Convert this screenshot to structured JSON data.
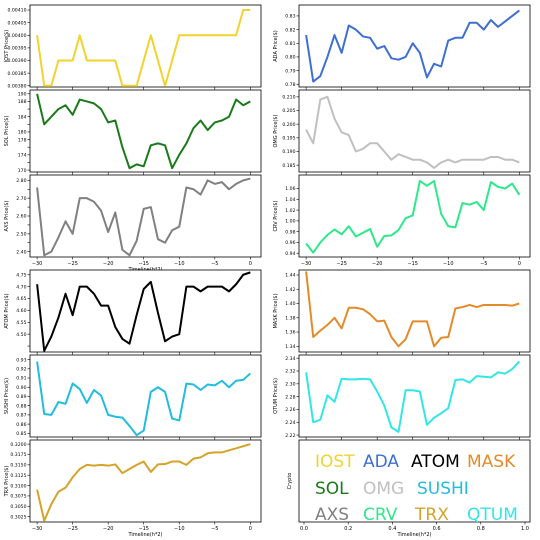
{
  "xlabel": "Timeline(h*2)",
  "x": [
    -30,
    -29,
    -28,
    -27,
    -26,
    -25,
    -24,
    -23,
    -22,
    -21,
    -20,
    -19,
    -18,
    -17,
    -16,
    -15,
    -14,
    -13,
    -12,
    -11,
    -10,
    -9,
    -8,
    -7,
    -6,
    -5,
    -4,
    -3,
    -2,
    -1,
    0
  ],
  "chart_data": [
    {
      "type": "line",
      "name": "IOST",
      "ylabel": "IOST Price($)",
      "color": "#f2d22e",
      "xticks": [
        -30,
        -25,
        -20,
        -15,
        -10,
        -5,
        0
      ],
      "yticks": [
        0.0038,
        0.00385,
        0.0039,
        0.00395,
        0.004,
        0.00405,
        0.0041
      ],
      "ytick_labels": [
        "0.00380",
        "0.00385",
        "0.00390",
        "0.00395",
        "0.00400",
        "0.00405",
        "0.00410"
      ],
      "ylim": [
        0.003795,
        0.00412
      ],
      "values": [
        0.004,
        0.0038,
        0.0038,
        0.0039,
        0.0039,
        0.0039,
        0.004,
        0.0039,
        0.0039,
        0.0039,
        0.0039,
        0.0039,
        0.0038,
        0.0038,
        0.0038,
        0.0039,
        0.004,
        0.0039,
        0.0038,
        0.0039,
        0.004,
        0.004,
        0.004,
        0.004,
        0.004,
        0.004,
        0.004,
        0.004,
        0.004,
        0.0041,
        0.0041
      ]
    },
    {
      "type": "line",
      "name": "ADA",
      "ylabel": "ADA Price($)",
      "color": "#3f6fd1",
      "xticks": [
        -30,
        -25,
        -20,
        -15,
        -10,
        -5,
        0
      ],
      "yticks": [
        0.78,
        0.79,
        0.8,
        0.81,
        0.82,
        0.83
      ],
      "ytick_labels": [
        "0.78",
        "0.79",
        "0.80",
        "0.81",
        "0.82",
        "0.83"
      ],
      "ylim": [
        0.778,
        0.838
      ],
      "values": [
        0.816,
        0.782,
        0.786,
        0.8,
        0.816,
        0.803,
        0.823,
        0.82,
        0.815,
        0.814,
        0.806,
        0.808,
        0.799,
        0.798,
        0.8,
        0.81,
        0.803,
        0.785,
        0.795,
        0.793,
        0.812,
        0.814,
        0.814,
        0.825,
        0.825,
        0.82,
        0.827,
        0.822,
        0.826,
        0.83,
        0.834
      ]
    },
    {
      "type": "line",
      "name": "SOL",
      "ylabel": "SOL Price($)",
      "color": "#1a7a1a",
      "xticks": [
        -30,
        -25,
        -20,
        -15,
        -10,
        -5,
        0
      ],
      "yticks": [
        170,
        172,
        174,
        176,
        178,
        180,
        182,
        184,
        186,
        188,
        190
      ],
      "ytick_labels": [
        "170",
        "",
        "174",
        "",
        "178",
        "180",
        "",
        "184",
        "",
        "188",
        "190"
      ],
      "ylim": [
        169.5,
        191
      ],
      "values": [
        190,
        182,
        184,
        186,
        187,
        184.5,
        188.5,
        188,
        187.5,
        186,
        182.5,
        183,
        176,
        170.5,
        171.5,
        171,
        176.5,
        177,
        176.5,
        170.5,
        174,
        177,
        181,
        183,
        180.5,
        182.5,
        183,
        184,
        188.5,
        187,
        188
      ]
    },
    {
      "type": "line",
      "name": "OMG",
      "ylabel": "OMG Price($)",
      "color": "#c0c0c0",
      "xticks": [
        -30,
        -25,
        -20,
        -15,
        -10,
        -5,
        0
      ],
      "yticks": [
        0.185,
        0.19,
        0.195,
        0.2,
        0.205,
        0.21
      ],
      "ytick_labels": [
        "0.185",
        "0.190",
        "0.195",
        "0.200",
        "0.205",
        "0.210"
      ],
      "ylim": [
        0.1825,
        0.2125
      ],
      "values": [
        0.198,
        0.193,
        0.209,
        0.21,
        0.202,
        0.197,
        0.196,
        0.19,
        0.191,
        0.193,
        0.193,
        0.19,
        0.187,
        0.189,
        0.188,
        0.187,
        0.187,
        0.186,
        0.184,
        0.186,
        0.187,
        0.186,
        0.187,
        0.187,
        0.187,
        0.187,
        0.188,
        0.188,
        0.187,
        0.187,
        0.186
      ]
    },
    {
      "type": "line",
      "name": "AXS",
      "ylabel": "AXS Price($)",
      "color": "#808080",
      "xticks": [
        -30,
        -25,
        -20,
        -15,
        -10,
        -5,
        0
      ],
      "yticks": [
        2.4,
        2.45,
        2.5,
        2.55,
        2.6,
        2.65,
        2.7,
        2.75,
        2.8
      ],
      "ytick_labels": [
        "2.40",
        "",
        "2.50",
        "",
        "2.60",
        "",
        "2.70",
        "",
        "2.80"
      ],
      "ylim": [
        2.37,
        2.83
      ],
      "values": [
        2.76,
        2.38,
        2.4,
        2.48,
        2.57,
        2.5,
        2.7,
        2.7,
        2.68,
        2.63,
        2.51,
        2.62,
        2.41,
        2.38,
        2.46,
        2.64,
        2.65,
        2.47,
        2.45,
        2.52,
        2.54,
        2.76,
        2.75,
        2.72,
        2.8,
        2.78,
        2.79,
        2.75,
        2.78,
        2.8,
        2.81
      ]
    },
    {
      "type": "line",
      "name": "CRV",
      "ylabel": "CRV Price($)",
      "color": "#2ee88a",
      "xticks": [
        -30,
        -25,
        -20,
        -15,
        -10,
        -5,
        0
      ],
      "yticks": [
        0.94,
        0.96,
        0.98,
        1.0,
        1.02,
        1.04,
        1.06
      ],
      "ytick_labels": [
        "0.94",
        "0.96",
        "0.98",
        "1.00",
        "1.02",
        "1.04",
        "1.06"
      ],
      "ylim": [
        0.933,
        1.085
      ],
      "values": [
        0.958,
        0.941,
        0.96,
        0.974,
        0.984,
        0.975,
        0.99,
        0.971,
        0.978,
        0.985,
        0.952,
        0.972,
        0.973,
        0.983,
        1.005,
        1.01,
        1.074,
        1.065,
        1.074,
        1.013,
        0.99,
        0.988,
        1.033,
        1.03,
        1.035,
        1.02,
        1.072,
        1.063,
        1.06,
        1.069,
        1.048
      ]
    },
    {
      "type": "line",
      "name": "ATOM",
      "ylabel": "ATOM Price($)",
      "color": "#000000",
      "xticks": [
        -30,
        -25,
        -20,
        -15,
        -10,
        -5,
        0
      ],
      "yticks": [
        4.45,
        4.5,
        4.55,
        4.6,
        4.65,
        4.7,
        4.75
      ],
      "ytick_labels": [
        "",
        "4.50",
        "4.55",
        "4.60",
        "4.65",
        "4.70",
        "4.75"
      ],
      "ylim": [
        4.425,
        4.77
      ],
      "values": [
        4.71,
        4.43,
        4.49,
        4.57,
        4.67,
        4.58,
        4.7,
        4.7,
        4.67,
        4.62,
        4.62,
        4.53,
        4.48,
        4.46,
        4.58,
        4.69,
        4.72,
        4.59,
        4.47,
        4.49,
        4.5,
        4.7,
        4.7,
        4.68,
        4.7,
        4.7,
        4.7,
        4.68,
        4.71,
        4.75,
        4.76
      ]
    },
    {
      "type": "line",
      "name": "MASK",
      "ylabel": "MASK Price($)",
      "color": "#e38b2a",
      "xticks": [
        -30,
        -25,
        -20,
        -15,
        -10,
        -5,
        0
      ],
      "yticks": [
        1.34,
        1.36,
        1.38,
        1.4,
        1.42,
        1.44
      ],
      "ytick_labels": [
        "1.34",
        "1.36",
        "1.38",
        "1.40",
        "1.42",
        "1.44"
      ],
      "ylim": [
        1.332,
        1.447
      ],
      "values": [
        1.445,
        1.353,
        1.362,
        1.37,
        1.38,
        1.365,
        1.394,
        1.394,
        1.392,
        1.385,
        1.375,
        1.376,
        1.353,
        1.34,
        1.35,
        1.375,
        1.375,
        1.375,
        1.34,
        1.352,
        1.353,
        1.393,
        1.395,
        1.398,
        1.395,
        1.398,
        1.398,
        1.398,
        1.398,
        1.397,
        1.4
      ]
    },
    {
      "type": "line",
      "name": "SUSHI",
      "ylabel": "SUSHI Price($)",
      "color": "#22bce0",
      "xticks": [
        -30,
        -25,
        -20,
        -15,
        -10,
        -5,
        0
      ],
      "yticks": [
        0.85,
        0.86,
        0.87,
        0.88,
        0.89,
        0.9,
        0.91,
        0.92,
        0.93
      ],
      "ytick_labels": [
        "0.85",
        "0.86",
        "0.87",
        "0.88",
        "0.89",
        "0.90",
        "0.91",
        "0.92",
        "0.93"
      ],
      "ylim": [
        0.846,
        0.935
      ],
      "values": [
        0.928,
        0.871,
        0.87,
        0.884,
        0.882,
        0.904,
        0.898,
        0.883,
        0.897,
        0.891,
        0.87,
        0.868,
        0.867,
        0.858,
        0.848,
        0.853,
        0.895,
        0.9,
        0.895,
        0.866,
        0.864,
        0.904,
        0.903,
        0.897,
        0.903,
        0.902,
        0.907,
        0.9,
        0.907,
        0.908,
        0.915
      ]
    },
    {
      "type": "line",
      "name": "QTUM",
      "ylabel": "QTUM Price($)",
      "color": "#33e6e6",
      "xticks": [
        -30,
        -25,
        -20,
        -15,
        -10,
        -5,
        0
      ],
      "yticks": [
        2.22,
        2.24,
        2.26,
        2.28,
        2.3,
        2.32,
        2.34
      ],
      "ytick_labels": [
        "2.22",
        "2.24",
        "2.26",
        "2.28",
        "2.30",
        "2.32",
        "2.34"
      ],
      "ylim": [
        2.217,
        2.345
      ],
      "values": [
        2.318,
        2.24,
        2.244,
        2.282,
        2.272,
        2.308,
        2.307,
        2.307,
        2.308,
        2.307,
        2.288,
        2.266,
        2.232,
        2.225,
        2.29,
        2.29,
        2.288,
        2.236,
        2.247,
        2.254,
        2.262,
        2.306,
        2.307,
        2.302,
        2.312,
        2.311,
        2.31,
        2.318,
        2.316,
        2.323,
        2.335
      ]
    },
    {
      "type": "line",
      "name": "TRX",
      "ylabel": "TRX Price($)",
      "color": "#d4a32a",
      "xticks": [
        -30,
        -25,
        -20,
        -15,
        -10,
        -5,
        0
      ],
      "yticks": [
        0.3025,
        0.305,
        0.3075,
        0.31,
        0.3125,
        0.315,
        0.3175,
        0.32
      ],
      "ytick_labels": [
        "0.3025",
        "0.3050",
        "0.3075",
        "0.3100",
        "0.3125",
        "0.3150",
        "0.3175",
        "0.3200"
      ],
      "ylim": [
        0.3012,
        0.321
      ],
      "values": [
        0.309,
        0.3015,
        0.3055,
        0.3085,
        0.3095,
        0.312,
        0.314,
        0.315,
        0.3148,
        0.315,
        0.3148,
        0.3151,
        0.313,
        0.314,
        0.315,
        0.3158,
        0.3133,
        0.3151,
        0.3152,
        0.3158,
        0.3158,
        0.315,
        0.3165,
        0.3168,
        0.3178,
        0.318,
        0.318,
        0.3185,
        0.319,
        0.3195,
        0.32
      ]
    },
    {
      "type": "legend",
      "ylabel": "Crypto",
      "xlabel": "Timeline(h*2)",
      "xticks": [
        0.0,
        0.2,
        0.4,
        0.6,
        0.8,
        1.0
      ],
      "xtick_labels": [
        "0.0",
        "0.2",
        "0.4",
        "0.6",
        "0.8",
        "1.0"
      ],
      "entries": [
        {
          "label": "IOST",
          "color": "#f2d22e"
        },
        {
          "label": "ADA",
          "color": "#3f6fd1"
        },
        {
          "label": "ATOM",
          "color": "#000000"
        },
        {
          "label": "MASK",
          "color": "#e38b2a"
        },
        {
          "label": "SOL",
          "color": "#1a7a1a"
        },
        {
          "label": "OMG",
          "color": "#c0c0c0"
        },
        {
          "label": "SUSHI",
          "color": "#22bce0"
        },
        {
          "label": "AXS",
          "color": "#808080"
        },
        {
          "label": "CRV",
          "color": "#2ee88a"
        },
        {
          "label": "TRX",
          "color": "#d4a32a"
        },
        {
          "label": "QTUM",
          "color": "#33e6e6"
        }
      ]
    }
  ]
}
